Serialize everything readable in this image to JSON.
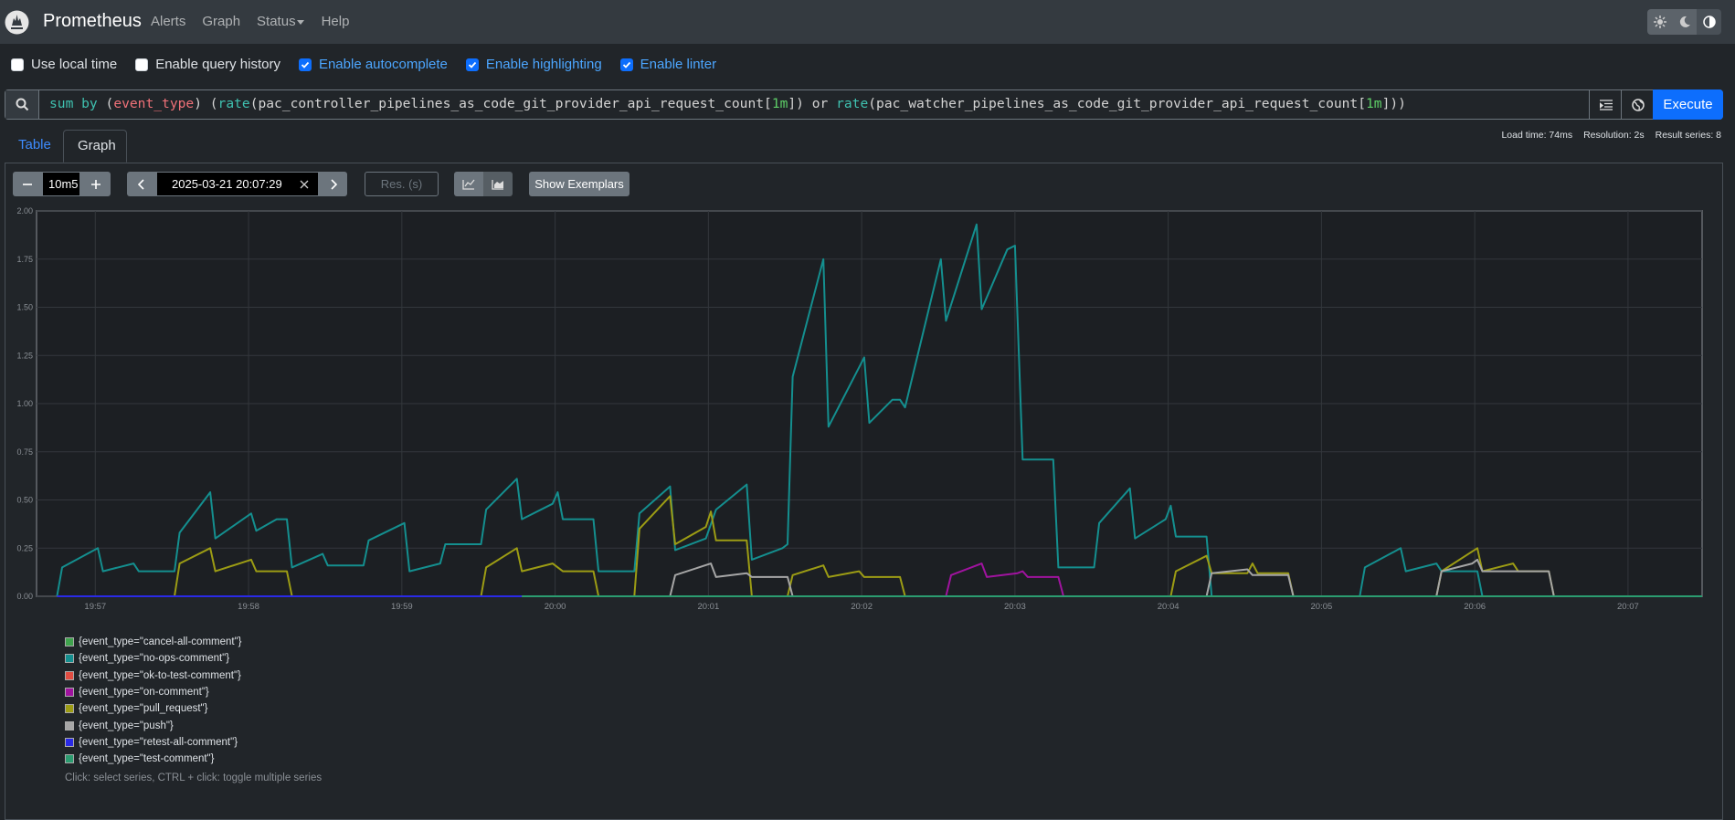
{
  "navbar": {
    "brand": "Prometheus",
    "links": [
      "Alerts",
      "Graph",
      "Status",
      "Help"
    ]
  },
  "settings": [
    {
      "label": "Use local time",
      "checked": false
    },
    {
      "label": "Enable query history",
      "checked": false
    },
    {
      "label": "Enable autocomplete",
      "checked": true
    },
    {
      "label": "Enable highlighting",
      "checked": true
    },
    {
      "label": "Enable linter",
      "checked": true
    }
  ],
  "query": {
    "tokens": [
      {
        "text": "sum by ",
        "color": "#3fc1b0"
      },
      {
        "text": "(",
        "color": "#d4d4d4"
      },
      {
        "text": "event_type",
        "color": "#f07178"
      },
      {
        "text": ") (",
        "color": "#d4d4d4"
      },
      {
        "text": "rate",
        "color": "#3fc1b0"
      },
      {
        "text": "(pac_controller_pipelines_as_code_git_provider_api_request_count[",
        "color": "#d4d4d4"
      },
      {
        "text": "1m",
        "color": "#5fd068"
      },
      {
        "text": "]) or ",
        "color": "#d4d4d4"
      },
      {
        "text": "rate",
        "color": "#3fc1b0"
      },
      {
        "text": "(pac_watcher_pipelines_as_code_git_provider_api_request_count[",
        "color": "#d4d4d4"
      },
      {
        "text": "1m",
        "color": "#5fd068"
      },
      {
        "text": "]))",
        "color": "#d4d4d4"
      }
    ]
  },
  "execute": "Execute",
  "tabs": [
    "Table",
    "Graph"
  ],
  "stats": [
    "Load time: 74ms",
    "Resolution: 2s",
    "Result series: 8"
  ],
  "controls": {
    "range": "10m5",
    "end_time": "2025-03-21 20:07:29",
    "resolution_placeholder": "Res. (s)",
    "exemplars": "Show Exemplars"
  },
  "chart_data": {
    "type": "line",
    "xlim": [
      "19:56:37",
      "20:07:29"
    ],
    "xticks": [
      "19:57",
      "19:58",
      "19:59",
      "20:00",
      "20:01",
      "20:02",
      "20:03",
      "20:04",
      "20:05",
      "20:06",
      "20:07"
    ],
    "ylim": [
      0,
      2
    ],
    "yticks": [
      {
        "value": 0,
        "label": "0.00"
      },
      {
        "value": 0.25,
        "label": "0.25"
      },
      {
        "value": 0.5,
        "label": "0.50"
      },
      {
        "value": 0.75,
        "label": "0.75"
      },
      {
        "value": 1,
        "label": "1.00"
      },
      {
        "value": 1.25,
        "label": "1.25"
      },
      {
        "value": 1.5,
        "label": "1.50"
      },
      {
        "value": 1.75,
        "label": "1.75"
      },
      {
        "value": 2,
        "label": "2.00"
      }
    ],
    "grid": true,
    "series": [
      {
        "name": "{event_type=\"cancel-all-comment\"}",
        "color": "#3fa34d",
        "x": [
          "19:56:45",
          "20:07:29"
        ],
        "values": [
          0,
          0
        ]
      },
      {
        "name": "{event_type=\"no-ops-comment\"}",
        "color": "#148f8f",
        "x": [
          "19:56:45",
          "19:56:47",
          "19:57:01",
          "19:57:03",
          "19:57:15",
          "19:57:17",
          "19:57:31",
          "19:57:33",
          "19:57:45",
          "19:57:47",
          "19:58:01",
          "19:58:03",
          "19:58:11",
          "19:58:15",
          "19:58:17",
          "19:58:29",
          "19:58:31",
          "19:58:45",
          "19:58:47",
          "19:59:01",
          "19:59:03",
          "19:59:15",
          "19:59:17",
          "19:59:31",
          "19:59:33",
          "19:59:45",
          "19:59:47",
          "19:59:59",
          "20:00:01",
          "20:00:03",
          "20:00:15",
          "20:00:17",
          "20:00:31",
          "20:00:33",
          "20:00:45",
          "20:00:47",
          "20:00:59",
          "20:01:03",
          "20:01:15",
          "20:01:17",
          "20:01:29",
          "20:01:31",
          "20:01:33",
          "20:01:45",
          "20:01:47",
          "20:02:01",
          "20:02:03",
          "20:02:12",
          "20:02:15",
          "20:02:17",
          "20:02:31",
          "20:02:33",
          "20:02:45",
          "20:02:47",
          "20:02:57",
          "20:03:00",
          "20:03:03",
          "20:03:15",
          "20:03:17",
          "20:03:31",
          "20:03:33",
          "20:03:45",
          "20:03:47",
          "20:03:59",
          "20:04:01",
          "20:04:03",
          "20:04:15",
          "20:04:17",
          "20:04:45",
          "20:05:15",
          "20:05:17",
          "20:05:31",
          "20:05:33",
          "20:05:45",
          "20:05:47",
          "20:06:01",
          "20:06:03"
        ],
        "values": [
          0,
          0.15,
          0.25,
          0.13,
          0.17,
          0.13,
          0.13,
          0.33,
          0.54,
          0.3,
          0.43,
          0.34,
          0.4,
          0.4,
          0.15,
          0.22,
          0.16,
          0.16,
          0.29,
          0.38,
          0.13,
          0.17,
          0.27,
          0.27,
          0.45,
          0.61,
          0.4,
          0.48,
          0.54,
          0.4,
          0.4,
          0.13,
          0.13,
          0.43,
          0.57,
          0.24,
          0.3,
          0.45,
          0.58,
          0.19,
          0.25,
          0.27,
          1.14,
          1.75,
          0.88,
          1.24,
          0.9,
          1.02,
          1.02,
          0.98,
          1.75,
          1.43,
          1.93,
          1.49,
          1.8,
          1.82,
          0.71,
          0.71,
          0.15,
          0.15,
          0.38,
          0.56,
          0.3,
          0.4,
          0.47,
          0.31,
          0.31,
          0,
          null,
          0,
          0.15,
          0.25,
          0.13,
          0.17,
          0.13,
          0.13,
          0
        ]
      },
      {
        "name": "{event_type=\"ok-to-test-comment\"}",
        "color": "#e24d42",
        "x": [
          "19:56:45",
          "20:07:29"
        ],
        "values": [
          0,
          0
        ]
      },
      {
        "name": "{event_type=\"on-comment\"}",
        "color": "#a0139f",
        "x": [
          "20:02:33",
          "20:02:35",
          "20:02:47",
          "20:02:49",
          "20:03:01",
          "20:03:03",
          "20:03:05",
          "20:03:17",
          "20:03:19"
        ],
        "values": [
          0,
          0.11,
          0.17,
          0.1,
          0.12,
          0.13,
          0.1,
          0.1,
          0
        ]
      },
      {
        "name": "{event_type=\"pull_request\"}",
        "color": "#9c9c14",
        "x": [
          "19:57:31",
          "19:57:33",
          "19:57:45",
          "19:57:47",
          "19:58:01",
          "19:58:03",
          "19:58:15",
          "19:58:17",
          "19:58:50",
          "19:59:31",
          "19:59:33",
          "19:59:45",
          "19:59:47",
          "19:59:59",
          "20:00:03",
          "20:00:15",
          "20:00:17",
          "20:00:24",
          "20:00:31",
          "20:00:33",
          "20:00:45",
          "20:00:47",
          "20:00:59",
          "20:01:01",
          "20:01:03",
          "20:01:15",
          "20:01:17",
          "20:01:24",
          "20:01:31",
          "20:01:33",
          "20:01:45",
          "20:01:47",
          "20:01:59",
          "20:02:01",
          "20:02:15",
          "20:02:17",
          "20:03:00",
          "20:04:01",
          "20:04:03",
          "20:04:15",
          "20:04:17",
          "20:04:31",
          "20:04:33",
          "20:04:35",
          "20:04:47",
          "20:04:49",
          "20:05:15",
          "20:05:45",
          "20:05:47",
          "20:06:01",
          "20:06:03",
          "20:06:15",
          "20:06:17",
          "20:06:29",
          "20:06:31"
        ],
        "values": [
          0,
          0.17,
          0.25,
          0.13,
          0.19,
          0.13,
          0.13,
          0,
          null,
          0,
          0.15,
          0.25,
          0.13,
          0.17,
          0.13,
          0.13,
          0,
          null,
          0,
          0.35,
          0.52,
          0.27,
          0.36,
          0.44,
          0.29,
          0.29,
          0,
          null,
          0,
          0.11,
          0.16,
          0.1,
          0.13,
          0.1,
          0.1,
          0,
          null,
          0,
          0.13,
          0.21,
          0.12,
          0.12,
          0.17,
          0.12,
          0.12,
          0,
          null,
          0,
          0.13,
          0.25,
          0.13,
          0.17,
          0.13,
          0.13,
          0
        ]
      },
      {
        "name": "{event_type=\"push\"}",
        "color": "#a6a6a6",
        "x": [
          "20:00:45",
          "20:00:47",
          "20:01:01",
          "20:01:03",
          "20:01:15",
          "20:01:17",
          "20:01:31",
          "20:01:33",
          "20:03:00",
          "20:04:15",
          "20:04:17",
          "20:04:31",
          "20:04:33",
          "20:04:47",
          "20:04:49",
          "20:05:15",
          "20:05:45",
          "20:05:47",
          "20:05:59",
          "20:06:01",
          "20:06:03",
          "20:06:29",
          "20:06:31"
        ],
        "values": [
          0,
          0.11,
          0.17,
          0.1,
          0.12,
          0.1,
          0.1,
          0,
          null,
          0,
          0.12,
          0.14,
          0.11,
          0.11,
          0,
          null,
          0,
          0.13,
          0.17,
          0.19,
          0.13,
          0.13,
          0
        ]
      },
      {
        "name": "{event_type=\"retest-all-comment\"}",
        "color": "#2a2ae6",
        "x": [
          "19:56:45",
          "19:59:47"
        ],
        "values": [
          0,
          0
        ]
      },
      {
        "name": "{event_type=\"test-comment\"}",
        "color": "#2b9c70",
        "x": [
          "19:59:47",
          "20:07:29"
        ],
        "values": [
          0,
          0
        ]
      }
    ]
  },
  "legend_hint": "Click: select series, CTRL + click: toggle multiple series"
}
